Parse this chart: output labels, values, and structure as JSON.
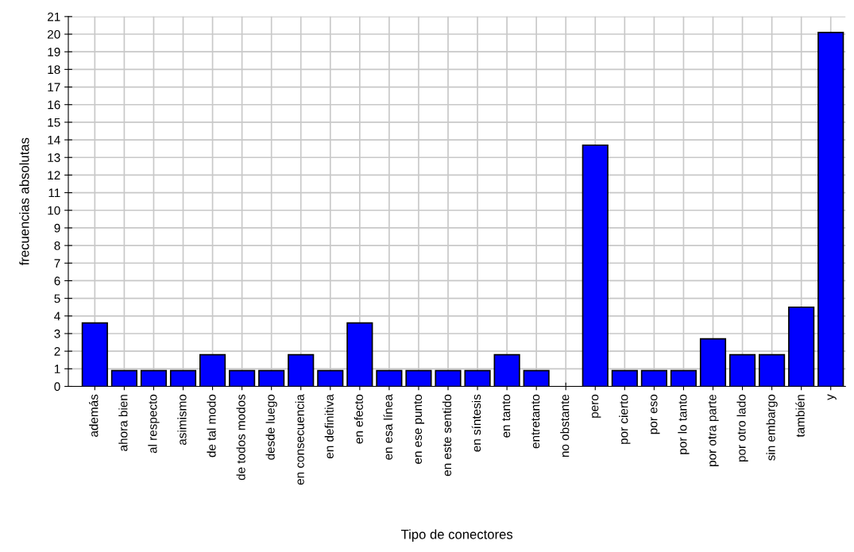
{
  "chart_data": {
    "type": "bar",
    "xlabel": "Tipo de conectores",
    "ylabel": "frecuencias absolutas",
    "categories": [
      "además",
      "ahora bien",
      "al respecto",
      "asimismo",
      "de tal modo",
      "de todos modos",
      "desde luego",
      "en consecuencia",
      "en definitiva",
      "en efecto",
      "en esa línea",
      "en ese punto",
      "en este sentido",
      "en síntesis",
      "en tanto",
      "entretanto",
      "no obstante",
      "pero",
      "por cierto",
      "por eso",
      "por lo tanto",
      "por otra parte",
      "por otro lado",
      "sin embargo",
      "también",
      "y"
    ],
    "values": [
      3.6,
      0.9,
      0.9,
      0.9,
      1.8,
      0.9,
      0.9,
      1.8,
      0.9,
      3.6,
      0.9,
      0.9,
      0.9,
      0.9,
      1.8,
      0.9,
      0,
      13.7,
      0.9,
      0.9,
      0.9,
      2.7,
      1.8,
      1.8,
      4.5,
      20.1
    ],
    "color": "#0000ff",
    "ylim": [
      0,
      21
    ],
    "yticks": [
      0,
      1,
      2,
      3,
      4,
      5,
      6,
      7,
      8,
      9,
      10,
      11,
      12,
      13,
      14,
      15,
      16,
      17,
      18,
      19,
      20,
      21
    ],
    "grid": true
  }
}
